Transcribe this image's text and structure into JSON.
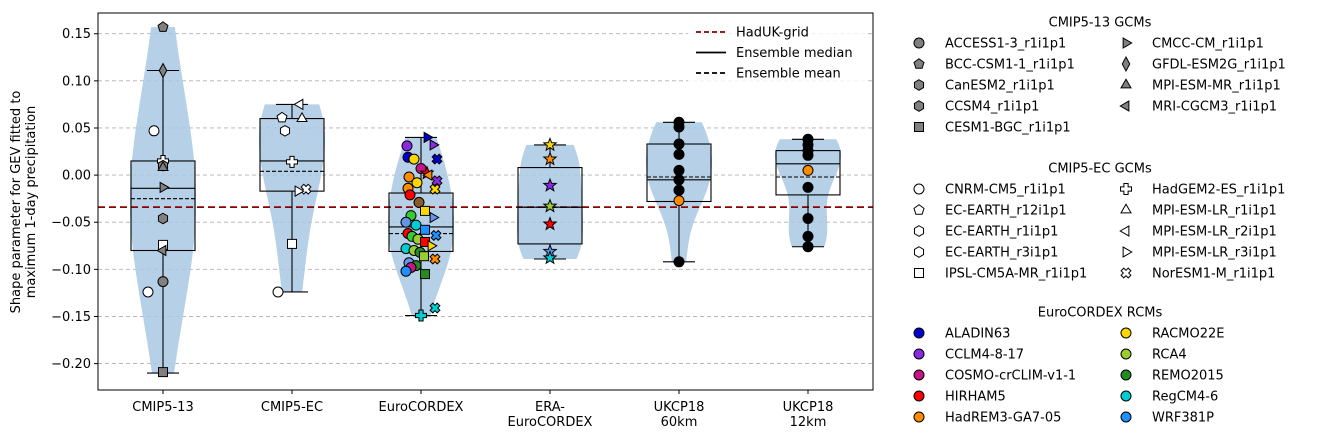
{
  "chart_data": {
    "type": "box_violin_strip",
    "xlabel": "",
    "ylabel_lines": [
      "Shape parameter for GEV fitted to",
      "maximum 1-day precipitation"
    ],
    "ylim": [
      -0.228,
      0.172
    ],
    "yticks": [
      0.15,
      0.1,
      0.05,
      0.0,
      -0.05,
      -0.1,
      -0.15,
      -0.2
    ],
    "ytick_labels": [
      "0.15",
      "0.10",
      "0.05",
      "0.00",
      "−0.05",
      "−0.10",
      "−0.15",
      "−0.20"
    ],
    "grid": "horizontal dashed",
    "reference_line": {
      "name": "HadUK-grid",
      "value": -0.034,
      "color": "#8b0000"
    },
    "legend_main": [
      {
        "label": "HadUK-grid",
        "style": "dashed",
        "color": "#8b0000"
      },
      {
        "label": "Ensemble median",
        "style": "solid",
        "color": "#000000"
      },
      {
        "label": "Ensemble mean",
        "style": "dashed",
        "color": "#000000"
      }
    ],
    "groups": [
      {
        "label_lines": [
          "CMIP5-13"
        ],
        "box": {
          "q1": -0.08,
          "median": -0.014,
          "q3": 0.015,
          "mean": -0.025,
          "whisker_low": -0.21,
          "whisker_high": 0.111
        },
        "violin_min": -0.21,
        "violin_max": 0.157,
        "points": [
          {
            "y": 0.157,
            "marker": "pentagon",
            "color": "#808080"
          },
          {
            "y": 0.111,
            "marker": "diamond",
            "color": "#808080"
          },
          {
            "y": 0.047,
            "marker": "circle",
            "color": "#ffffff",
            "dx": -9
          },
          {
            "y": 0.015,
            "marker": "plus",
            "color": "#ffffff"
          },
          {
            "y": 0.01,
            "marker": "hexagon",
            "color": "#808080"
          },
          {
            "y": 0.008,
            "marker": "triangle-up",
            "color": "#808080"
          },
          {
            "y": -0.013,
            "marker": "triangle-right",
            "color": "#808080"
          },
          {
            "y": -0.046,
            "marker": "hexagon",
            "color": "#808080"
          },
          {
            "y": -0.074,
            "marker": "square",
            "color": "#ffffff"
          },
          {
            "y": -0.08,
            "marker": "triangle-left",
            "color": "#808080"
          },
          {
            "y": -0.113,
            "marker": "circle",
            "color": "#808080"
          },
          {
            "y": -0.124,
            "marker": "circle",
            "color": "#ffffff",
            "dx": -15
          },
          {
            "y": -0.209,
            "marker": "square",
            "color": "#808080"
          }
        ]
      },
      {
        "label_lines": [
          "CMIP5-EC"
        ],
        "box": {
          "q1": -0.017,
          "median": 0.015,
          "q3": 0.06,
          "mean": 0.004,
          "whisker_low": -0.124,
          "whisker_high": 0.075
        },
        "violin_min": -0.124,
        "violin_max": 0.075,
        "points": [
          {
            "y": 0.075,
            "marker": "triangle-left",
            "color": "#ffffff",
            "dx": 8
          },
          {
            "y": 0.061,
            "marker": "pentagon",
            "color": "#ffffff",
            "dx": -10
          },
          {
            "y": 0.06,
            "marker": "triangle-up",
            "color": "#ffffff",
            "dx": 10
          },
          {
            "y": 0.047,
            "marker": "hexagon",
            "color": "#ffffff",
            "dx": -7
          },
          {
            "y": 0.014,
            "marker": "plus",
            "color": "#ffffff"
          },
          {
            "y": -0.015,
            "marker": "x",
            "color": "#ffffff",
            "dx": 14
          },
          {
            "y": -0.017,
            "marker": "triangle-right",
            "color": "#ffffff",
            "dx": 6
          },
          {
            "y": -0.073,
            "marker": "square",
            "color": "#ffffff"
          },
          {
            "y": -0.124,
            "marker": "circle",
            "color": "#ffffff",
            "dx": -14
          }
        ]
      },
      {
        "label_lines": [
          "EuroCORDEX"
        ],
        "box": {
          "q1": -0.081,
          "median": -0.055,
          "q3": -0.019,
          "mean": -0.062,
          "whisker_low": -0.149,
          "whisker_high": 0.04
        },
        "violin_min": -0.149,
        "violin_max": 0.04,
        "points": [
          {
            "y": 0.04,
            "marker": "triangle-right",
            "color": "#0000cd",
            "dx": 6
          },
          {
            "y": 0.032,
            "marker": "triangle-right",
            "color": "#8a2be2",
            "dx": 12
          },
          {
            "y": 0.031,
            "marker": "circle",
            "color": "#8a2be2",
            "dx": -14
          },
          {
            "y": 0.019,
            "marker": "circle",
            "color": "#0000cd",
            "dx": -13
          },
          {
            "y": 0.017,
            "marker": "circle",
            "color": "#ffd700",
            "dx": -7
          },
          {
            "y": 0.017,
            "marker": "x",
            "color": "#0000cd",
            "dx": 16
          },
          {
            "y": 0.007,
            "marker": "circle",
            "color": "#c71585",
            "dx": 0
          },
          {
            "y": 0.002,
            "marker": "star",
            "color": "#ff0000",
            "dx": 6
          },
          {
            "y": 0.0,
            "marker": "triangle-left",
            "color": "#ff8c00",
            "dx": 8
          },
          {
            "y": -0.002,
            "marker": "circle",
            "color": "#ff8c00",
            "dx": -12
          },
          {
            "y": -0.006,
            "marker": "x",
            "color": "#8a2be2",
            "dx": 16
          },
          {
            "y": -0.008,
            "marker": "circle",
            "color": "#ffd700",
            "dx": -4
          },
          {
            "y": -0.014,
            "marker": "circle",
            "color": "#ff8c00",
            "dx": -13
          },
          {
            "y": -0.015,
            "marker": "x",
            "color": "#ffd700",
            "dx": 14
          },
          {
            "y": -0.021,
            "marker": "circle",
            "color": "#ff0000",
            "dx": -11
          },
          {
            "y": -0.029,
            "marker": "circle",
            "color": "#8b5a2b",
            "dx": -2
          },
          {
            "y": -0.038,
            "marker": "square",
            "color": "#ffd700",
            "dx": 4
          },
          {
            "y": -0.043,
            "marker": "circle",
            "color": "#32cd32",
            "dx": -10
          },
          {
            "y": -0.045,
            "marker": "triangle-right",
            "color": "#6495ed",
            "dx": 12
          },
          {
            "y": -0.05,
            "marker": "circle",
            "color": "#6495ed",
            "dx": -15
          },
          {
            "y": -0.053,
            "marker": "circle",
            "color": "#00ced1",
            "dx": -5
          },
          {
            "y": -0.058,
            "marker": "square",
            "color": "#1e90ff",
            "dx": 4
          },
          {
            "y": -0.062,
            "marker": "circle",
            "color": "#ff0000",
            "dx": -13
          },
          {
            "y": -0.064,
            "marker": "x",
            "color": "#1e90ff",
            "dx": 15
          },
          {
            "y": -0.065,
            "marker": "circle",
            "color": "#32cd32",
            "dx": -9
          },
          {
            "y": -0.068,
            "marker": "circle",
            "color": "#9acd32",
            "dx": -3
          },
          {
            "y": -0.071,
            "marker": "square",
            "color": "#ff0000",
            "dx": 4
          },
          {
            "y": -0.075,
            "marker": "triangle-right",
            "color": "#ffd700",
            "dx": 10
          },
          {
            "y": -0.078,
            "marker": "circle",
            "color": "#00ced1",
            "dx": -15
          },
          {
            "y": -0.08,
            "marker": "circle",
            "color": "#9acd32",
            "dx": -7
          },
          {
            "y": -0.082,
            "marker": "circle",
            "color": "#228b22",
            "dx": -1
          },
          {
            "y": -0.086,
            "marker": "square",
            "color": "#9acd32",
            "dx": 3
          },
          {
            "y": -0.089,
            "marker": "x",
            "color": "#ff8c00",
            "dx": 14
          },
          {
            "y": -0.093,
            "marker": "circle",
            "color": "#6495ed",
            "dx": -12
          },
          {
            "y": -0.096,
            "marker": "circle",
            "color": "#228b22",
            "dx": -5
          },
          {
            "y": -0.098,
            "marker": "circle",
            "color": "#c71585",
            "dx": -10
          },
          {
            "y": -0.102,
            "marker": "circle",
            "color": "#1e90ff",
            "dx": -15
          },
          {
            "y": -0.105,
            "marker": "square",
            "color": "#228b22",
            "dx": 4
          },
          {
            "y": -0.141,
            "marker": "x",
            "color": "#00ced1",
            "dx": 14
          },
          {
            "y": -0.149,
            "marker": "plus",
            "color": "#00ced1",
            "dx": 0
          }
        ]
      },
      {
        "label_lines": [
          "ERA-",
          "EuroCORDEX"
        ],
        "box": {
          "q1": -0.073,
          "median": -0.034,
          "q3": 0.008,
          "mean": -0.034,
          "whisker_low": -0.089,
          "whisker_high": 0.032
        },
        "violin_min": -0.089,
        "violin_max": 0.032,
        "points": [
          {
            "y": 0.032,
            "marker": "star",
            "color": "#ffd700"
          },
          {
            "y": 0.017,
            "marker": "star",
            "color": "#ff8c00"
          },
          {
            "y": -0.011,
            "marker": "star",
            "color": "#8a2be2"
          },
          {
            "y": -0.033,
            "marker": "star",
            "color": "#9acd32"
          },
          {
            "y": -0.052,
            "marker": "star",
            "color": "#ff0000"
          },
          {
            "y": -0.081,
            "marker": "star",
            "color": "#6495ed"
          },
          {
            "y": -0.088,
            "marker": "star",
            "color": "#00ced1"
          }
        ]
      },
      {
        "label_lines": [
          "UKCP18",
          "60km"
        ],
        "box": {
          "q1": -0.028,
          "median": -0.005,
          "q3": 0.033,
          "mean": -0.002,
          "whisker_low": -0.092,
          "whisker_high": 0.056
        },
        "violin_min": -0.092,
        "violin_max": 0.056,
        "points": [
          {
            "y": 0.056,
            "marker": "circle",
            "color": "#000000"
          },
          {
            "y": 0.051,
            "marker": "circle",
            "color": "#000000"
          },
          {
            "y": 0.033,
            "marker": "circle",
            "color": "#000000"
          },
          {
            "y": 0.022,
            "marker": "circle",
            "color": "#000000"
          },
          {
            "y": 0.005,
            "marker": "circle",
            "color": "#000000"
          },
          {
            "y": -0.005,
            "marker": "circle",
            "color": "#000000"
          },
          {
            "y": -0.016,
            "marker": "circle",
            "color": "#000000"
          },
          {
            "y": -0.027,
            "marker": "circle",
            "color": "#ff8c00"
          },
          {
            "y": -0.092,
            "marker": "circle",
            "color": "#000000"
          }
        ]
      },
      {
        "label_lines": [
          "UKCP18",
          "12km"
        ],
        "box": {
          "q1": -0.021,
          "median": 0.012,
          "q3": 0.026,
          "mean": -0.002,
          "whisker_low": -0.076,
          "whisker_high": 0.038
        },
        "violin_min": -0.076,
        "violin_max": 0.038,
        "points": [
          {
            "y": 0.038,
            "marker": "circle",
            "color": "#000000"
          },
          {
            "y": 0.032,
            "marker": "circle",
            "color": "#000000"
          },
          {
            "y": 0.026,
            "marker": "circle",
            "color": "#000000"
          },
          {
            "y": 0.021,
            "marker": "circle",
            "color": "#000000"
          },
          {
            "y": 0.005,
            "marker": "circle",
            "color": "#ff8c00"
          },
          {
            "y": -0.013,
            "marker": "circle",
            "color": "#000000"
          },
          {
            "y": -0.046,
            "marker": "circle",
            "color": "#000000"
          },
          {
            "y": -0.065,
            "marker": "circle",
            "color": "#000000"
          },
          {
            "y": -0.076,
            "marker": "circle",
            "color": "#000000"
          }
        ]
      }
    ],
    "legend_sections": [
      {
        "title": "CMIP5-13 GCMs",
        "columns": [
          [
            {
              "label": "ACCESS1-3_r1i1p1",
              "marker": "circle",
              "color": "#808080"
            },
            {
              "label": "BCC-CSM1-1_r1i1p1",
              "marker": "pentagon",
              "color": "#808080"
            },
            {
              "label": "CanESM2_r1i1p1",
              "marker": "hexagon",
              "color": "#808080"
            },
            {
              "label": "CCSM4_r1i1p1",
              "marker": "hexagon",
              "color": "#808080"
            },
            {
              "label": "CESM1-BGC_r1i1p1",
              "marker": "square",
              "color": "#808080"
            }
          ],
          [
            {
              "label": "CMCC-CM_r1i1p1",
              "marker": "triangle-right",
              "color": "#808080"
            },
            {
              "label": "GFDL-ESM2G_r1i1p1",
              "marker": "diamond",
              "color": "#808080"
            },
            {
              "label": "MPI-ESM-MR_r1i1p1",
              "marker": "triangle-up",
              "color": "#808080"
            },
            {
              "label": "MRI-CGCM3_r1i1p1",
              "marker": "triangle-left",
              "color": "#808080"
            }
          ]
        ]
      },
      {
        "title": "CMIP5-EC GCMs",
        "columns": [
          [
            {
              "label": "CNRM-CM5_r1i1p1",
              "marker": "circle",
              "color": "#ffffff"
            },
            {
              "label": "EC-EARTH_r12i1p1",
              "marker": "pentagon",
              "color": "#ffffff"
            },
            {
              "label": "EC-EARTH_r1i1p1",
              "marker": "hexagon",
              "color": "#ffffff"
            },
            {
              "label": "EC-EARTH_r3i1p1",
              "marker": "hexagon",
              "color": "#ffffff"
            },
            {
              "label": "IPSL-CM5A-MR_r1i1p1",
              "marker": "square",
              "color": "#ffffff"
            }
          ],
          [
            {
              "label": "HadGEM2-ES_r1i1p1",
              "marker": "plus",
              "color": "#ffffff"
            },
            {
              "label": "MPI-ESM-LR_r1i1p1",
              "marker": "triangle-up",
              "color": "#ffffff"
            },
            {
              "label": "MPI-ESM-LR_r2i1p1",
              "marker": "triangle-left",
              "color": "#ffffff"
            },
            {
              "label": "MPI-ESM-LR_r3i1p1",
              "marker": "triangle-right",
              "color": "#ffffff"
            },
            {
              "label": "NorESM1-M_r1i1p1",
              "marker": "x",
              "color": "#ffffff"
            }
          ]
        ]
      },
      {
        "title": "EuroCORDEX RCMs",
        "columns": [
          [
            {
              "label": "ALADIN63",
              "marker": "circle",
              "color": "#0000cd"
            },
            {
              "label": "CCLM4-8-17",
              "marker": "circle",
              "color": "#8a2be2"
            },
            {
              "label": "COSMO-crCLIM-v1-1",
              "marker": "circle",
              "color": "#c71585"
            },
            {
              "label": "HIRHAM5",
              "marker": "circle",
              "color": "#ff0000"
            },
            {
              "label": "HadREM3-GA7-05",
              "marker": "circle",
              "color": "#ff8c00"
            }
          ],
          [
            {
              "label": "RACMO22E",
              "marker": "circle",
              "color": "#ffd700"
            },
            {
              "label": "RCA4",
              "marker": "circle",
              "color": "#9acd32"
            },
            {
              "label": "REMO2015",
              "marker": "circle",
              "color": "#228b22"
            },
            {
              "label": "RegCM4-6",
              "marker": "circle",
              "color": "#00ced1"
            },
            {
              "label": "WRF381P",
              "marker": "circle",
              "color": "#1e90ff"
            }
          ]
        ]
      }
    ],
    "colors": {
      "violin": "#a9c8e3",
      "grid": "#b0b0b0"
    }
  }
}
